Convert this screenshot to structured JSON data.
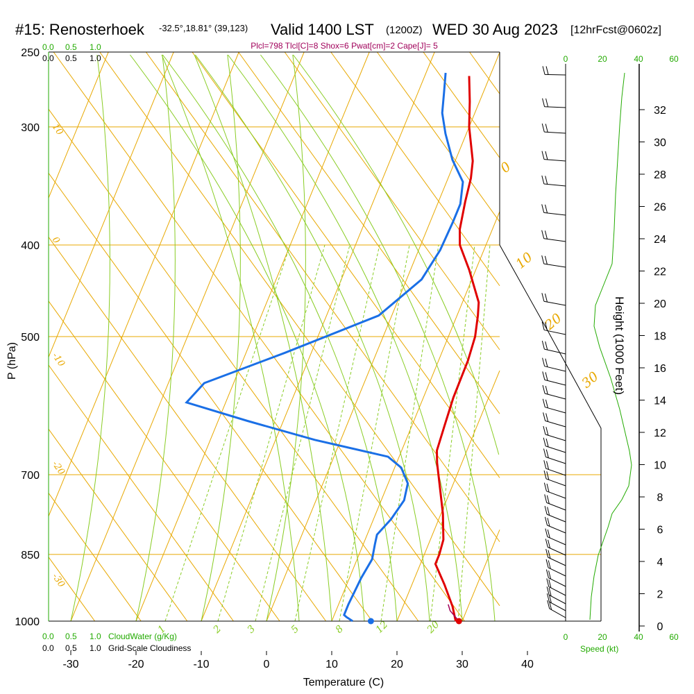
{
  "header": {
    "station": "#15: Renosterhoek",
    "location": "-32.5°,18.81° (39,123)",
    "valid": "Valid 1400 LST",
    "utc": "(1200Z)",
    "date": "WED 30 Aug 2023",
    "forecast": "[12hrFcst@0602z]"
  },
  "params_text": "Plcl=798 Tlcl[C]=8 Shox=6 Pwat[cm]=2 Cape[J]= 5",
  "cloud_scale": {
    "top_green": [
      "0.0",
      "0.5",
      "1.0"
    ],
    "top_black": [
      "0.0",
      "0.5",
      "1.0"
    ],
    "bottom_green": [
      "0.0",
      "0.5",
      "1.0"
    ],
    "bottom_black": [
      "0.0",
      "0.5",
      "1.0"
    ],
    "cloudwater_label": "CloudWater (g/Kg)",
    "cloudiness_label": "Grid-Scale Cloudiness"
  },
  "speed_axis": {
    "ticks": [
      "0",
      "20",
      "40",
      "60"
    ],
    "label": "Speed (kt)"
  },
  "colors": {
    "isotherm": "#e8a800",
    "dry_adiabat": "#e8a800",
    "moist_adiabat": "#88cc22",
    "mixing_ratio": "#88cc22",
    "temperature": "#e00000",
    "dewpoint": "#1a6fe6",
    "params": "#a0005a",
    "speed_profile": "#22aa00"
  },
  "chart_data": {
    "type": "line",
    "title": "#15: Renosterhoek",
    "xlabel": "Temperature (C)",
    "ylabel": "P (hPa)",
    "y2label": "Height (1000 Feet)",
    "xlim": [
      -34,
      36
    ],
    "ylim": [
      1000,
      250
    ],
    "y_scale": "log",
    "x_ticks": [
      "-30",
      "-20",
      "-10",
      "0",
      "10",
      "20",
      "30",
      "40"
    ],
    "p_ticks": [
      "250",
      "300",
      "400",
      "500",
      "700",
      "850",
      "1000"
    ],
    "height_ticks": [
      "0",
      "2",
      "4",
      "6",
      "8",
      "10",
      "12",
      "14",
      "16",
      "18",
      "20",
      "22",
      "24",
      "26",
      "28",
      "30",
      "32"
    ],
    "dry_adiabat_labels": [
      "10",
      "0",
      "-10",
      "-20",
      "-30"
    ],
    "moist_adiabat_labels": [
      "0",
      "10",
      "20",
      "30"
    ],
    "mixing_ratio_labels": [
      "1",
      "2",
      "3",
      "5",
      "8",
      "12",
      "20"
    ],
    "series": [
      {
        "name": "Temperature",
        "points": [
          [
            29,
            1000
          ],
          [
            27.6,
            965
          ],
          [
            25,
            915
          ],
          [
            22.3,
            870
          ],
          [
            22.3,
            850
          ],
          [
            22,
            820
          ],
          [
            20.3,
            770
          ],
          [
            18,
            718
          ],
          [
            16.2,
            680
          ],
          [
            15.4,
            660
          ],
          [
            15,
            620
          ],
          [
            14.6,
            580
          ],
          [
            14.5,
            530
          ],
          [
            14.1,
            500
          ],
          [
            13.2,
            475
          ],
          [
            12.5,
            460
          ],
          [
            9,
            425
          ],
          [
            6,
            400
          ],
          [
            5,
            385
          ],
          [
            4.1,
            360
          ],
          [
            3.5,
            340
          ],
          [
            2.7,
            326
          ],
          [
            0,
            300
          ],
          [
            -1.5,
            282
          ],
          [
            -3.2,
            265
          ]
        ]
      },
      {
        "name": "Dewpoint",
        "points": [
          [
            13.2,
            1000
          ],
          [
            12,
            990
          ],
          [
            11.5,
            985
          ],
          [
            11.5,
            960
          ],
          [
            11.8,
            900
          ],
          [
            12.3,
            860
          ],
          [
            11.8,
            830
          ],
          [
            11.5,
            810
          ],
          [
            12.7,
            780
          ],
          [
            13.5,
            745
          ],
          [
            13,
            715
          ],
          [
            11,
            688
          ],
          [
            8.3,
            670
          ],
          [
            -4,
            643
          ],
          [
            -15.5,
            614
          ],
          [
            -26,
            587
          ],
          [
            -24.5,
            560
          ],
          [
            -14,
            520
          ],
          [
            -2,
            475
          ],
          [
            2.3,
            435
          ],
          [
            3.3,
            405
          ],
          [
            3.5,
            378
          ],
          [
            3.5,
            362
          ],
          [
            2.5,
            343
          ],
          [
            -0.5,
            325
          ],
          [
            -3.2,
            305
          ],
          [
            -5,
            290
          ],
          [
            -6,
            276
          ],
          [
            -7,
            263
          ]
        ]
      }
    ],
    "surface_temperature": 29.5,
    "surface_dewpoint": 16
  }
}
